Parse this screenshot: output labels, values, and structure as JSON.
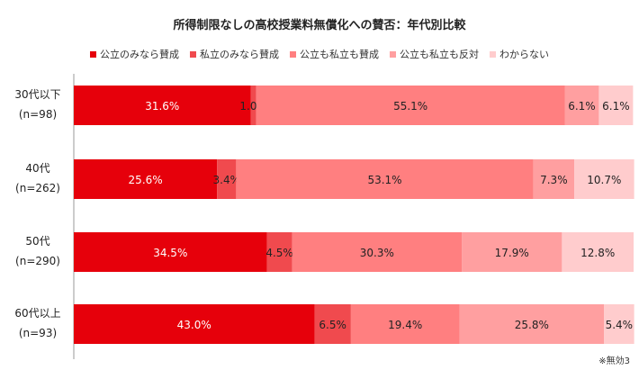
{
  "chart_data": {
    "type": "bar",
    "orientation": "horizontal",
    "stacked": true,
    "title": "所得制限なしの高校授業料無償化への賛否：年代別比較",
    "legend_position": "top",
    "categories": [
      {
        "label": "30代以下",
        "sub": "(n=98)"
      },
      {
        "label": "40代",
        "sub": "(n=262)"
      },
      {
        "label": "50代",
        "sub": "(n=290)"
      },
      {
        "label": "60代以上",
        "sub": "(n=93)"
      }
    ],
    "series": [
      {
        "name": "公立のみなら賛成",
        "color": "#e6000b",
        "label_color": "#ffffff",
        "values": [
          31.6,
          25.6,
          34.5,
          43.0
        ],
        "labels": [
          "31.6%",
          "25.6%",
          "34.5%",
          "43.0%"
        ]
      },
      {
        "name": "私立のみなら賛成",
        "color": "#f04a4e",
        "label_color": "#222222",
        "values": [
          1.0,
          3.4,
          4.5,
          6.5
        ],
        "labels": [
          "1.0%",
          "3.4%",
          "4.5%",
          "6.5%"
        ]
      },
      {
        "name": "公立も私立も賛成",
        "color": "#ff7f80",
        "label_color": "#222222",
        "values": [
          55.1,
          53.1,
          30.3,
          19.4
        ],
        "labels": [
          "55.1%",
          "53.1%",
          "30.3%",
          "19.4%"
        ]
      },
      {
        "name": "公立も私立も反対",
        "color": "#ff9fa0",
        "label_color": "#222222",
        "values": [
          6.1,
          7.3,
          17.9,
          25.8
        ],
        "labels": [
          "6.1%",
          "7.3%",
          "17.9%",
          "25.8%"
        ]
      },
      {
        "name": "わからない",
        "color": "#ffcccd",
        "label_color": "#222222",
        "values": [
          6.1,
          10.7,
          12.8,
          5.4
        ],
        "labels": [
          "6.1%",
          "10.7%",
          "12.8%",
          "5.4%"
        ]
      }
    ],
    "xlim": [
      0,
      100
    ]
  },
  "note": "※無効3"
}
